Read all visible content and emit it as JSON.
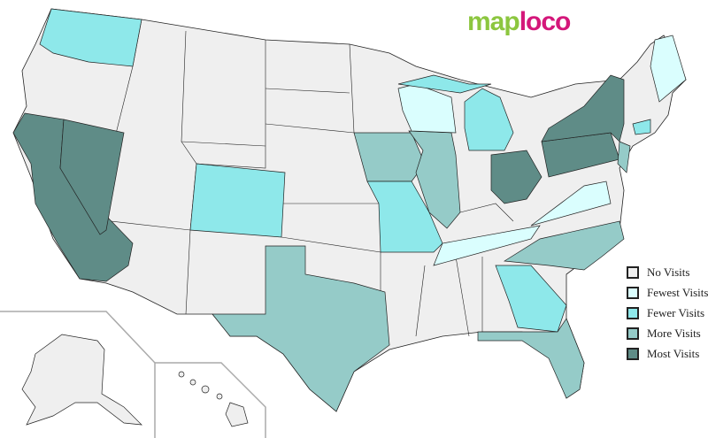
{
  "logo": {
    "part1": "map",
    "part2": "loco",
    "colors": {
      "part1": "#8cc63f",
      "part2": "#d4177a"
    }
  },
  "legend": [
    {
      "label": "No Visits",
      "color": "#efefef"
    },
    {
      "label": "Fewest Visits",
      "color": "#dafefe"
    },
    {
      "label": "Fewer Visits",
      "color": "#8ee8ea"
    },
    {
      "label": "More Visits",
      "color": "#95cbc8"
    },
    {
      "label": "Most Visits",
      "color": "#5f8c87"
    }
  ],
  "states": {
    "WA": "Fewer Visits",
    "CA": "Most Visits",
    "NV": "Most Visits",
    "CO": "Fewer Visits",
    "IA": "More Visits",
    "MO": "Fewer Visits",
    "IL": "More Visits",
    "WI": "Fewest Visits",
    "MI": "Fewer Visits",
    "OH": "Most Visits",
    "PA": "Most Visits",
    "NY": "Most Visits",
    "NJ": "More Visits",
    "CT": "Fewer Visits",
    "VA": "Fewest Visits",
    "TN": "Fewest Visits",
    "NC": "More Visits",
    "GA": "Fewer Visits",
    "FL": "More Visits",
    "TX": "More Visits",
    "ME": "Fewest Visits"
  }
}
